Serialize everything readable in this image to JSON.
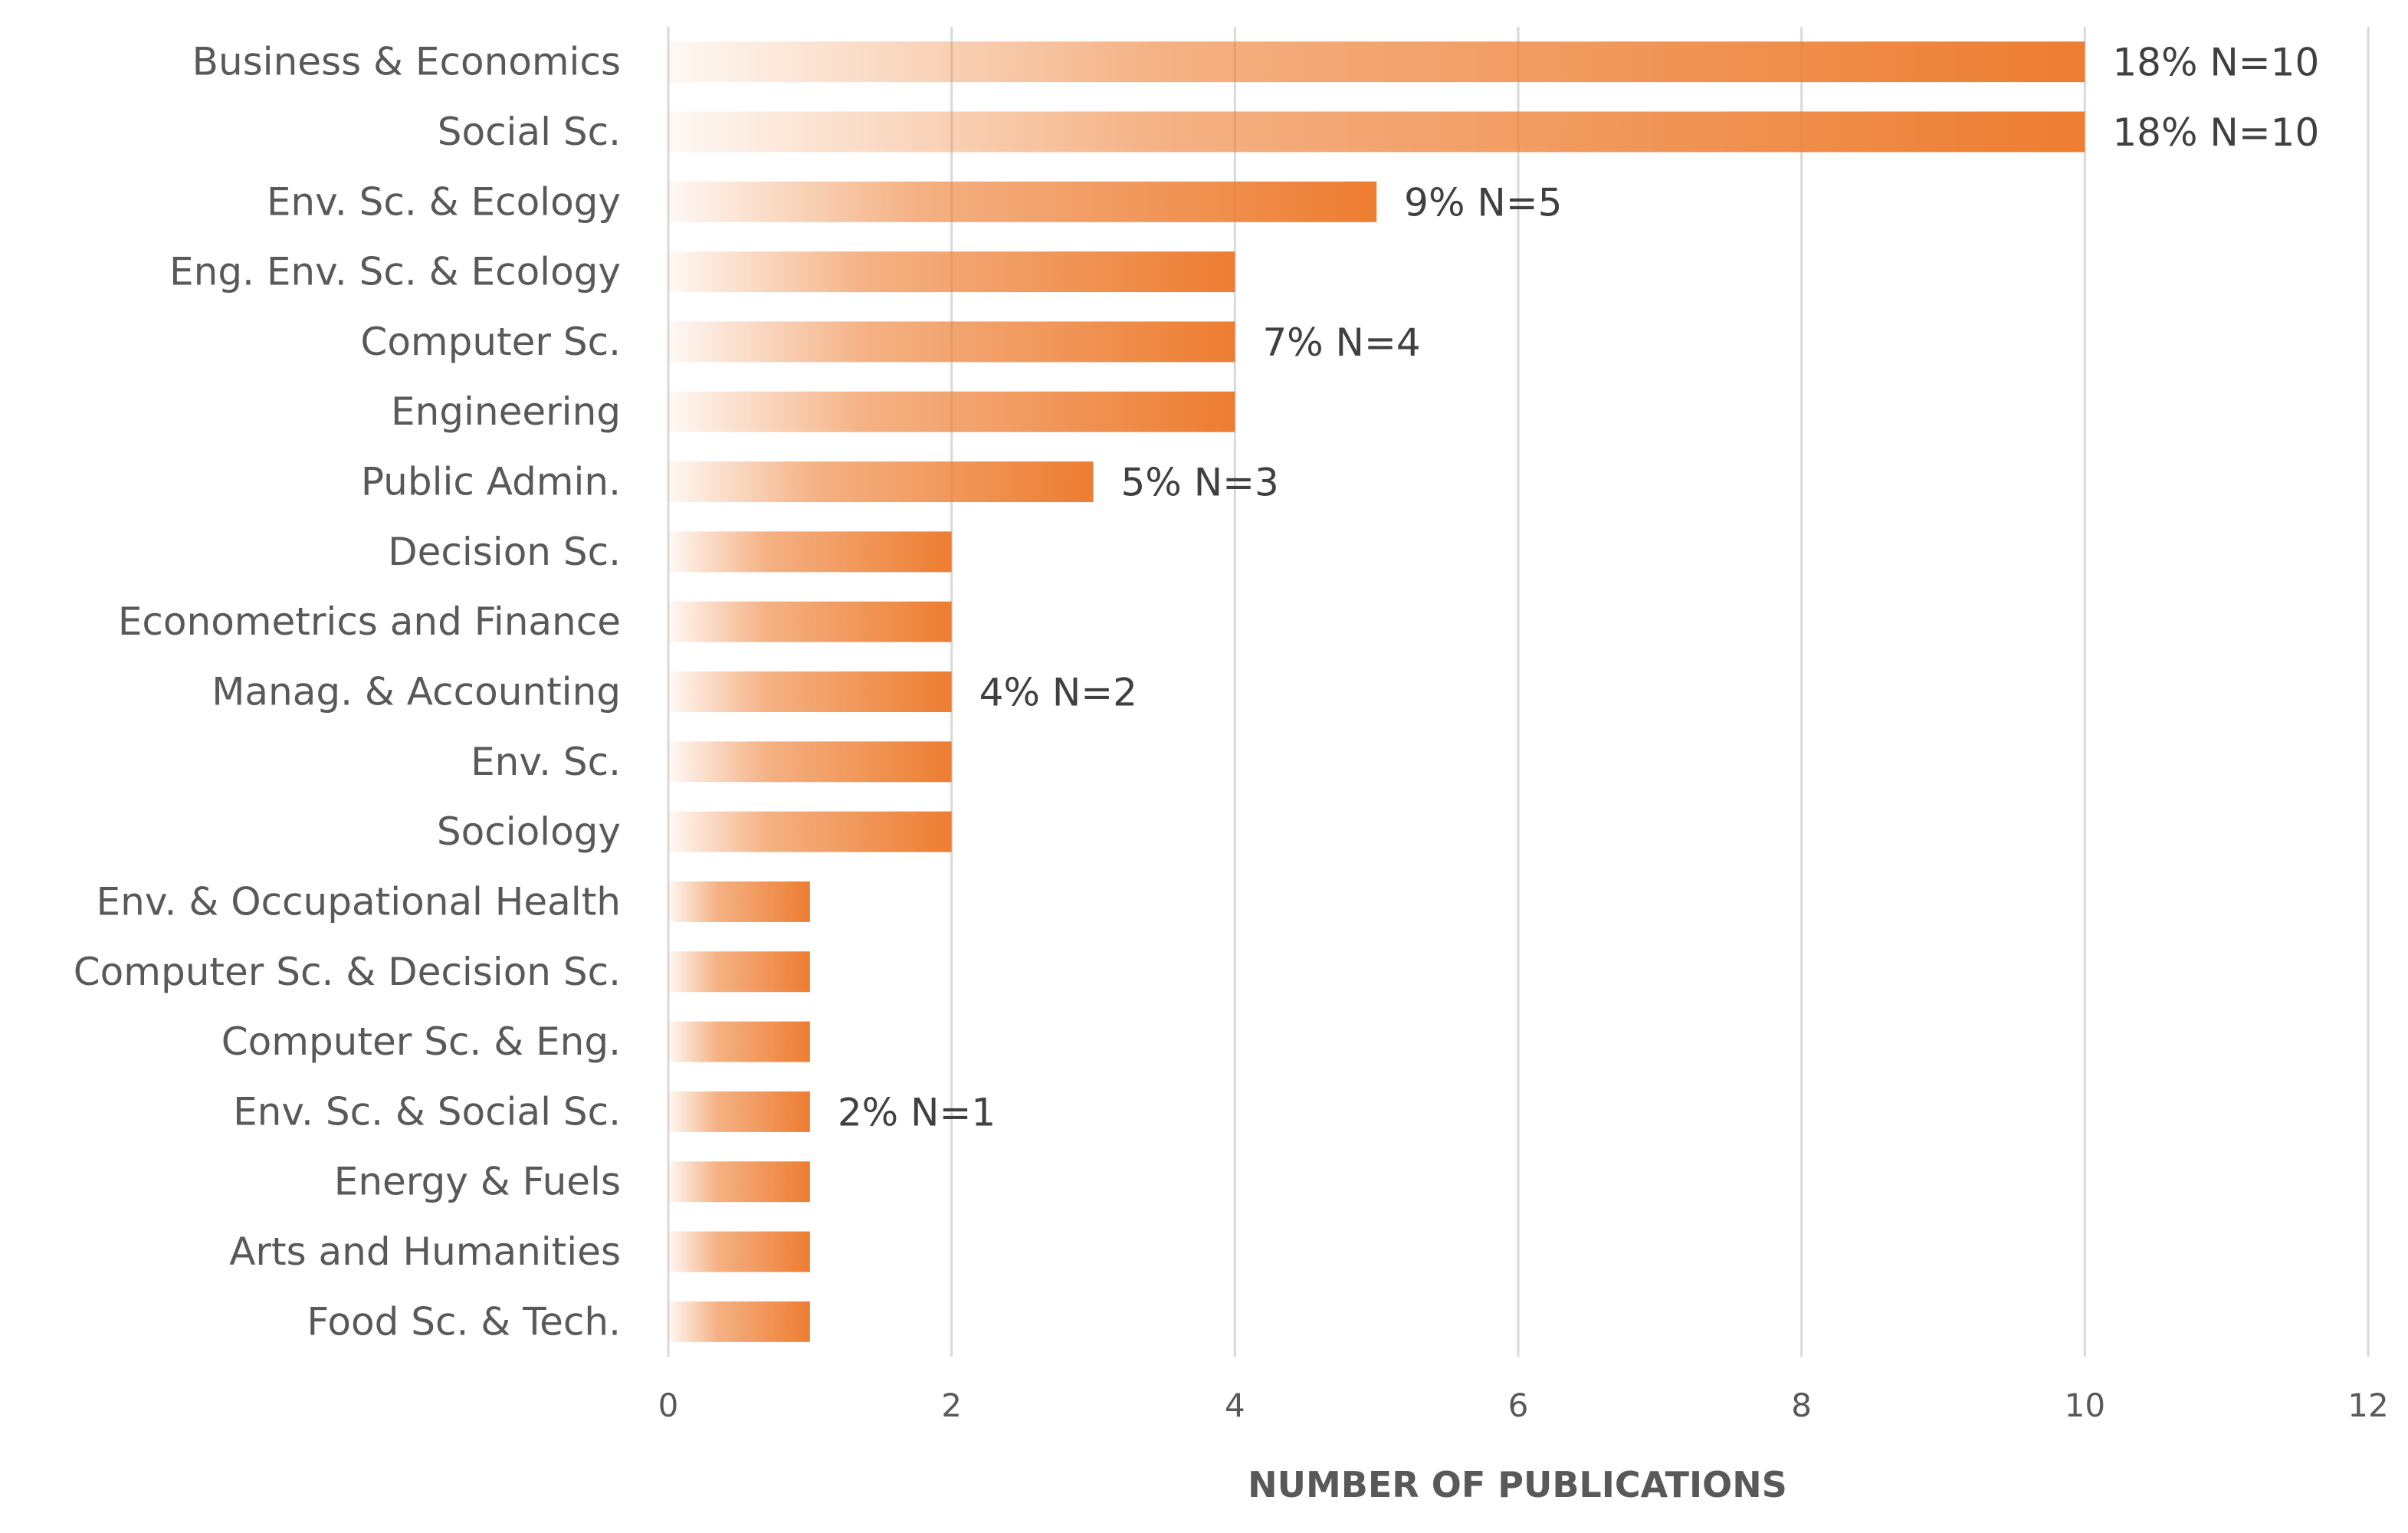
{
  "chart_data": {
    "type": "bar",
    "orientation": "horizontal",
    "categories": [
      "Business & Economics",
      "Social Sc.",
      "Env. Sc. & Ecology",
      "Eng. Env. Sc. & Ecology",
      "Computer Sc.",
      "Engineering",
      "Public Admin.",
      "Decision Sc.",
      "Econometrics and Finance",
      "Manag. & Accounting",
      "Env. Sc.",
      "Sociology",
      "Env. & Occupational Health",
      "Computer Sc. & Decision Sc.",
      "Computer Sc. & Eng.",
      "Env. Sc. & Social Sc.",
      "Energy & Fuels",
      "Arts and Humanities",
      "Food Sc. & Tech."
    ],
    "values": [
      10,
      10,
      5,
      4,
      4,
      4,
      3,
      2,
      2,
      2,
      2,
      2,
      1,
      1,
      1,
      1,
      1,
      1,
      1
    ],
    "data_labels": [
      {
        "category_index": 0,
        "text": "18% N=10"
      },
      {
        "category_index": 1,
        "text": "18% N=10"
      },
      {
        "category_index": 2,
        "text": "9% N=5"
      },
      {
        "category_index": 4,
        "text": "7% N=4"
      },
      {
        "category_index": 6,
        "text": "5% N=3"
      },
      {
        "category_index": 9,
        "text": "4% N=2"
      },
      {
        "category_index": 15,
        "text": "2% N=1"
      }
    ],
    "xlim": [
      0,
      12
    ],
    "xticks": [
      0,
      2,
      4,
      6,
      8,
      10,
      12
    ],
    "xlabel": "NUMBER OF PUBLICATIONS",
    "ylabel": "",
    "title": "",
    "grid": true,
    "bar_color": "#ed7d31",
    "bar_fill": "gradient"
  }
}
